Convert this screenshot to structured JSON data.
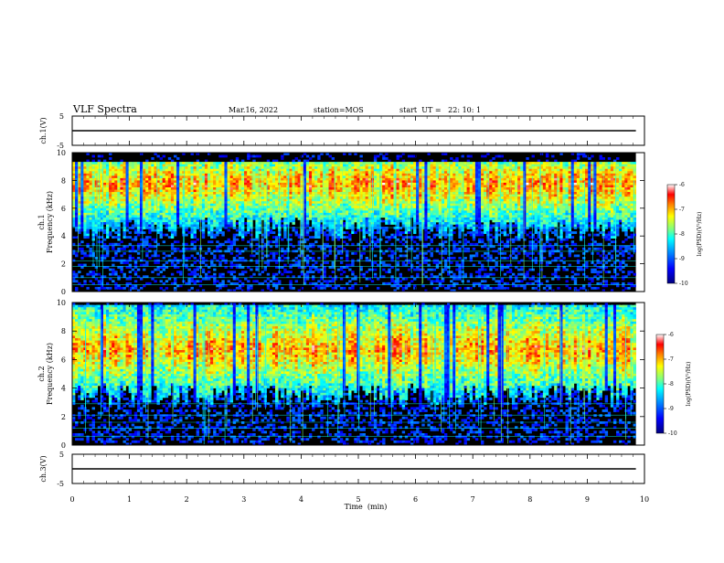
{
  "header": {
    "title": "VLF Spectra",
    "date": "Mar.16, 2022",
    "station": "station=MOS",
    "start_ut": "start  UT =   22: 10: 1"
  },
  "chart_data": [
    {
      "type": "line",
      "name": "ch.1 waveform",
      "ylabel": "ch.1(V)",
      "ylim": [
        -5,
        5
      ],
      "yticks": [
        "5",
        "-5"
      ],
      "x": [
        0,
        9.85
      ],
      "values": [
        0,
        0
      ]
    },
    {
      "type": "heatmap",
      "ylabel_lines": [
        "ch.1",
        "Frequency (kHz)"
      ],
      "ylim": [
        0,
        10
      ],
      "yticks": [
        "0",
        "2",
        "4",
        "6",
        "8",
        "10"
      ],
      "xlim": [
        0,
        10
      ],
      "colorbar": {
        "label": "log(PSD)(V²/Hz)",
        "range": [
          -10,
          -6
        ],
        "ticks": [
          "-6",
          "-7",
          "-8",
          "-9",
          "-10"
        ]
      },
      "emission_band_khz": [
        4.5,
        9.4
      ],
      "peak_band_khz": [
        6.5,
        9.0
      ]
    },
    {
      "type": "heatmap",
      "ylabel_lines": [
        "ch.2",
        "Frequency (kHz)"
      ],
      "ylim": [
        0,
        10
      ],
      "yticks": [
        "0",
        "2",
        "4",
        "6",
        "8",
        "10"
      ],
      "xlim": [
        0,
        10
      ],
      "colorbar": {
        "label": "log(PSD)(V²/Hz)",
        "range": [
          -10,
          -6
        ],
        "ticks": [
          "-6",
          "-7",
          "-8",
          "-9",
          "-10"
        ]
      },
      "emission_band_khz": [
        3.5,
        9.8
      ],
      "peak_band_khz": [
        5.0,
        8.5
      ]
    },
    {
      "type": "line",
      "name": "ch.3 waveform",
      "ylabel": "ch.3(V)",
      "ylim": [
        -5,
        5
      ],
      "yticks": [
        "5",
        "-5"
      ],
      "x": [
        0,
        9.85
      ],
      "values": [
        0,
        0
      ]
    }
  ],
  "x_axis": {
    "label": "Time  (min)",
    "ticks": [
      "0",
      "1",
      "2",
      "3",
      "4",
      "5",
      "6",
      "7",
      "8",
      "9",
      "10"
    ]
  },
  "colors": {
    "colormap": [
      "#00007f",
      "#0000ff",
      "#0080ff",
      "#00ffff",
      "#80ff80",
      "#ffff00",
      "#ff8000",
      "#ff0000",
      "#ffffff"
    ],
    "background": "#000000"
  }
}
